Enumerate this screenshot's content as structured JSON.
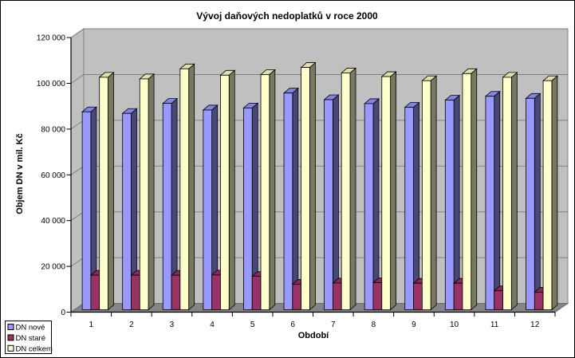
{
  "chart_data": {
    "type": "bar",
    "variant": "3d-clustered-column",
    "title": "Vývoj daňových nedoplatků v roce 2000",
    "xlabel": "Období",
    "ylabel": "Objem DN v mil. Kč",
    "categories": [
      "1",
      "2",
      "3",
      "4",
      "5",
      "6",
      "7",
      "8",
      "9",
      "10",
      "11",
      "12"
    ],
    "series": [
      {
        "name": "DN nové",
        "color": "#9999FF",
        "values": [
          86500,
          85800,
          90200,
          87300,
          88200,
          94700,
          91800,
          90100,
          88500,
          91600,
          93300,
          92400
        ]
      },
      {
        "name": "DN staré",
        "color": "#993366",
        "values": [
          15100,
          15100,
          15100,
          15200,
          14600,
          11200,
          11700,
          11800,
          11600,
          11600,
          8300,
          7700
        ]
      },
      {
        "name": "DN celkem",
        "color": "#FFFFCC",
        "values": [
          101600,
          100900,
          105300,
          102500,
          102800,
          105900,
          103500,
          101900,
          100100,
          103200,
          101600,
          100100
        ]
      }
    ],
    "ylim": [
      0,
      120000
    ],
    "ytick_step": 20000,
    "ytick_labels": [
      "0",
      "20 000",
      "40 000",
      "60 000",
      "80 000",
      "100 000",
      "120 000"
    ],
    "grid": "horizontal",
    "legend_position": "bottom-left",
    "colors": {
      "background": "#FFFFFF",
      "wall": "#C0C0C0",
      "floor": "#868486",
      "gridline": "#808080",
      "axis": "#000000",
      "border": "#000000"
    }
  }
}
